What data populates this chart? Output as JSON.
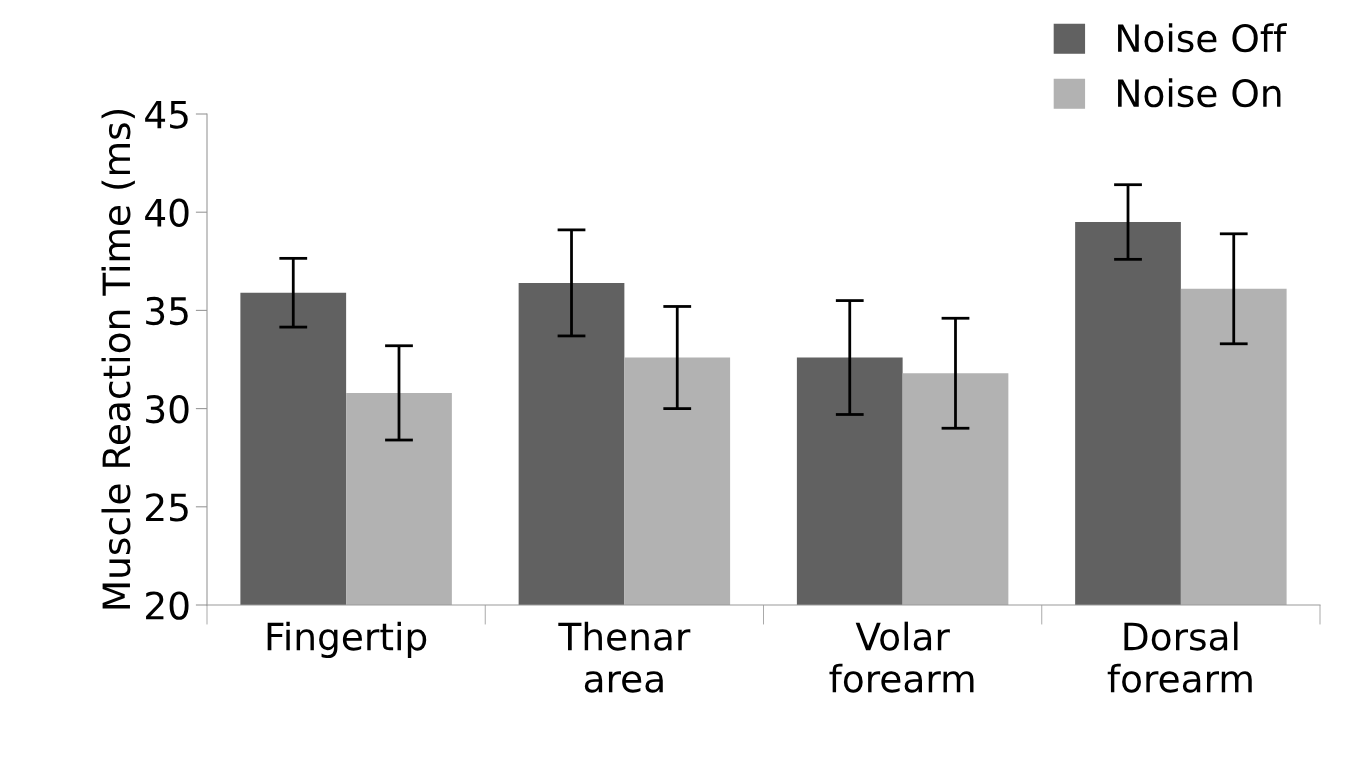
{
  "chart_data": {
    "type": "bar",
    "ylabel": "Muscle Reaction Time (ms)",
    "categories": [
      "Fingertip",
      "Thenar\narea",
      "Volar\nforearm",
      "Dorsal\nforearm"
    ],
    "series": [
      {
        "name": "Noise Off",
        "color": "#616161",
        "values": [
          35.9,
          36.4,
          32.6,
          39.5
        ],
        "errors": [
          1.75,
          2.7,
          2.9,
          1.9
        ]
      },
      {
        "name": "Noise On",
        "color": "#b2b2b2",
        "values": [
          30.8,
          32.6,
          31.8,
          36.1
        ],
        "errors": [
          2.4,
          2.6,
          2.8,
          2.8
        ]
      }
    ],
    "ylim": [
      20,
      45
    ],
    "yticks": [
      20,
      25,
      30,
      35,
      40,
      45
    ],
    "grid": false,
    "legend": "top right"
  }
}
